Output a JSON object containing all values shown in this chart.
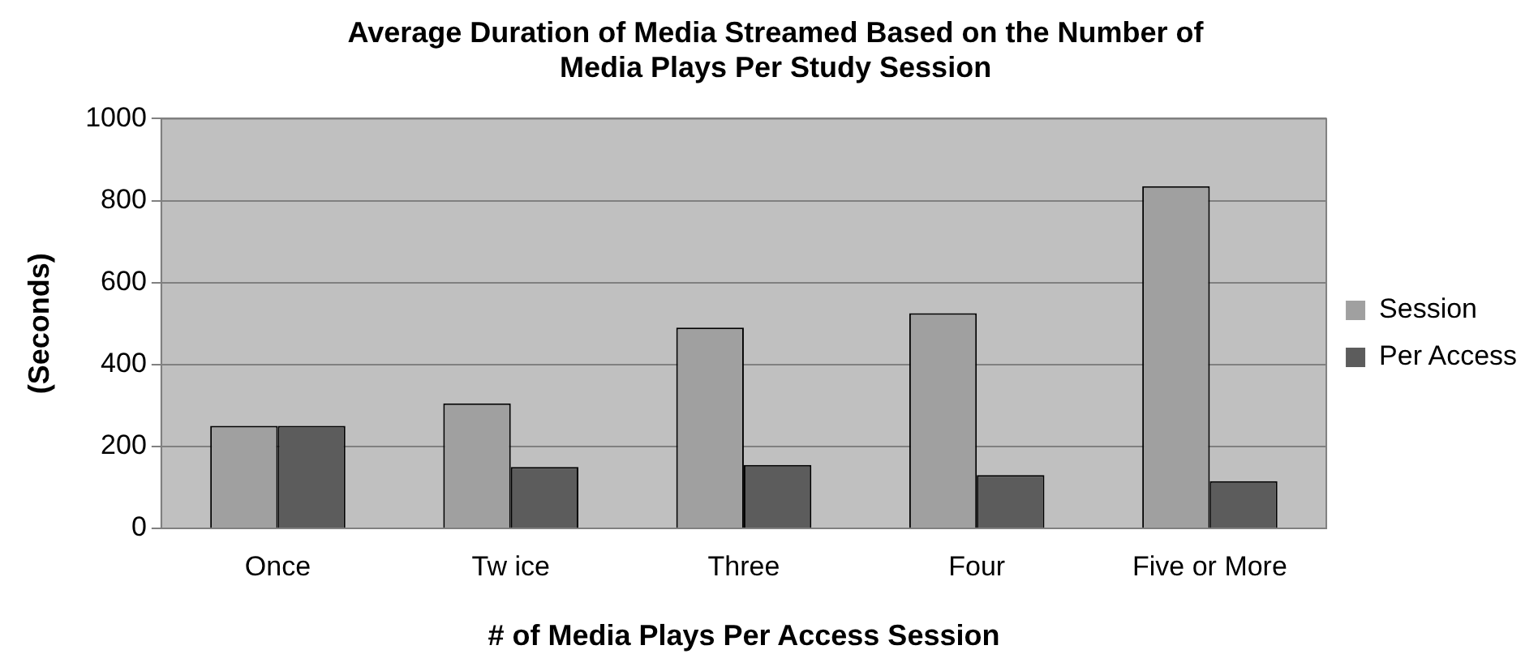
{
  "chart_data": {
    "type": "bar",
    "title": "Average Duration of Media Streamed Based on the Number of Media Plays Per Study Session",
    "xlabel": "# of Media Plays Per Access Session",
    "ylabel": "(Seconds)",
    "categories": [
      "Once",
      "Tw ice",
      "Three",
      "Four",
      "Five or More"
    ],
    "series": [
      {
        "name": "Session",
        "color": "#a0a0a0",
        "values": [
          250,
          305,
          490,
          525,
          835
        ]
      },
      {
        "name": "Per Access",
        "color": "#5c5c5c",
        "values": [
          250,
          150,
          155,
          130,
          115
        ]
      }
    ],
    "ylim": [
      0,
      1000
    ],
    "yticks": [
      0,
      200,
      400,
      600,
      800,
      1000
    ],
    "grid": "y",
    "legend": "right"
  }
}
